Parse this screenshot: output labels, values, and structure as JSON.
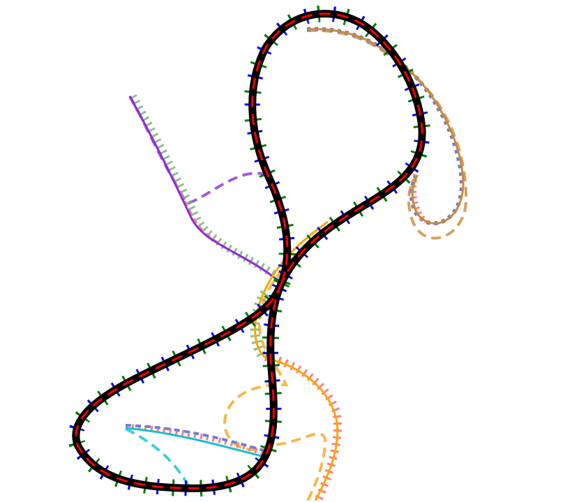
{
  "diagram": {
    "description_visible_text": "",
    "colors": {
      "main_track": "#000000",
      "red_dash": "#ff0000",
      "blue_tick": "#0000ff",
      "green_tick": "#007a00",
      "soft_red": "#ff7f7f",
      "soft_blue": "#6f7fd0",
      "soft_green": "#74b874",
      "brown": "#c88a3a",
      "brown_dash": "#d6a060",
      "orange": "#ffa500",
      "orange_dash": "#f7b84a",
      "purple": "#8a2be2",
      "purple_dash": "#a05ae0",
      "cyan": "#17becf",
      "cyan_dash": "#3fd0d6"
    },
    "curves": [
      {
        "name": "main-figure-eight-track"
      },
      {
        "name": "purple-branch-curve"
      },
      {
        "name": "brown-loop-curve"
      },
      {
        "name": "orange-branch-curve"
      },
      {
        "name": "cyan-branch-curve"
      }
    ]
  }
}
